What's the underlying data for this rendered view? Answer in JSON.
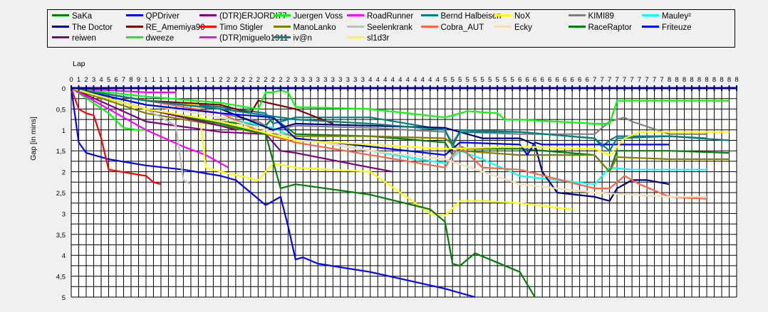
{
  "chart_data": {
    "type": "line",
    "xlabel": "Lap",
    "ylabel": "Gap [in mins]",
    "xlim": [
      0,
      89
    ],
    "ylim": [
      0,
      5
    ],
    "y_inverted": true,
    "x_axis_position": "top",
    "grid": true,
    "legend_position": "top",
    "x_tick_labels": [
      "0",
      "1",
      "2",
      "3",
      "4",
      "5",
      "6",
      "7",
      "8",
      "9",
      "1",
      "1",
      "1",
      "1",
      "1",
      "1",
      "1",
      "1",
      "1",
      "1",
      "2",
      "2",
      "2",
      "2",
      "2",
      "2",
      "2",
      "2",
      "2",
      "2",
      "3",
      "3",
      "3",
      "3",
      "3",
      "3",
      "3",
      "3",
      "3",
      "3",
      "4",
      "4",
      "4",
      "4",
      "4",
      "4",
      "4",
      "4",
      "4",
      "4",
      "5",
      "5",
      "5",
      "5",
      "5",
      "5",
      "5",
      "5",
      "5",
      "5",
      "6",
      "6",
      "6",
      "6",
      "6",
      "6",
      "6",
      "6",
      "6",
      "6",
      "7",
      "7",
      "7",
      "7",
      "7",
      "7",
      "7",
      "7",
      "7",
      "7",
      "8",
      "8",
      "8",
      "8",
      "8",
      "8",
      "8",
      "8",
      "8",
      "8"
    ],
    "y_tick_labels": [
      "0",
      "0,5",
      "1",
      "1,5",
      "2",
      "2,5",
      "3",
      "3,5",
      "4",
      "4,5",
      "5"
    ],
    "y_ticks": [
      0,
      0.5,
      1,
      1.5,
      2,
      2.5,
      3,
      3.5,
      4,
      4.5,
      5
    ],
    "series": [
      {
        "name": "SaKa",
        "color": "#008000",
        "x": [
          0,
          10,
          20,
          26,
          27,
          30,
          40,
          50,
          51,
          52,
          53,
          60,
          70,
          72,
          73,
          80,
          88
        ],
        "y": [
          0,
          0.5,
          0.8,
          0.9,
          0.7,
          1.1,
          1.15,
          1.3,
          1.6,
          1.4,
          1.45,
          1.45,
          1.6,
          2.0,
          1.5,
          1.5,
          1.55
        ]
      },
      {
        "name": "QPDriver",
        "color": "#0000ff",
        "x": [
          0,
          1,
          2,
          5,
          10,
          15,
          20,
          22,
          26,
          28,
          29,
          30,
          31,
          33,
          40,
          50,
          54
        ],
        "y": [
          0,
          1.3,
          1.55,
          1.7,
          1.85,
          1.95,
          2.1,
          2.2,
          2.8,
          2.6,
          3.3,
          4.1,
          4.05,
          4.2,
          4.4,
          4.8,
          5.0
        ]
      },
      {
        "name": "(DTR)ERJORDI77",
        "color": "#800080",
        "x": [
          0,
          10,
          20,
          26,
          28,
          30,
          40,
          43
        ],
        "y": [
          0,
          0.8,
          1.05,
          1.1,
          1.5,
          1.55,
          1.9,
          2.0
        ]
      },
      {
        "name": "Juergen Voss",
        "color": "#00ff00",
        "x": [
          0,
          5,
          7,
          9,
          10
        ],
        "y": [
          0,
          0.6,
          0.95,
          1.0,
          1.0
        ]
      },
      {
        "name": "RoadRunner",
        "color": "#ff00ff",
        "x": [
          0,
          10,
          15,
          18,
          20,
          21
        ],
        "y": [
          0,
          1.0,
          1.4,
          1.6,
          1.8,
          1.9
        ]
      },
      {
        "name": "Bernd Halbeisen",
        "color": "#008080",
        "x": [
          0,
          10,
          20,
          26,
          27,
          30,
          40,
          50,
          51,
          52,
          60,
          70,
          71,
          72,
          73,
          80,
          85
        ],
        "y": [
          0,
          0.3,
          0.45,
          0.6,
          0.85,
          0.7,
          0.7,
          1.0,
          1.4,
          1.0,
          1.05,
          1.2,
          1.4,
          1.25,
          1.15,
          1.15,
          1.2
        ]
      },
      {
        "name": "NoX",
        "color": "#ffff00",
        "x": [
          0,
          10,
          17,
          18,
          20,
          25,
          27,
          30,
          40,
          48,
          50,
          52,
          55,
          60,
          67
        ],
        "y": [
          0,
          0.3,
          0.4,
          1.9,
          2.0,
          2.2,
          1.8,
          1.9,
          2.0,
          3.0,
          3.05,
          2.7,
          2.7,
          2.75,
          2.9
        ]
      },
      {
        "name": "KIMI89",
        "color": "#808080",
        "x": [
          0,
          10,
          20,
          25,
          27,
          30,
          40,
          50,
          51,
          52,
          60,
          70,
          72,
          74,
          75,
          80,
          85
        ],
        "y": [
          0,
          0.4,
          0.6,
          0.8,
          1.0,
          0.9,
          0.95,
          1.05,
          1.3,
          1.05,
          1.1,
          1.1,
          0.8,
          0.7,
          0.8,
          1.1,
          1.1
        ]
      },
      {
        "name": "Mauley²",
        "color": "#00ffff",
        "x": [
          0,
          10,
          20,
          27,
          30,
          40,
          50,
          52,
          55,
          60,
          70,
          72,
          75,
          80,
          85
        ],
        "y": [
          0,
          0.4,
          0.7,
          0.95,
          1.2,
          1.5,
          1.8,
          1.5,
          1.7,
          2.1,
          2.3,
          1.9,
          1.95,
          1.95,
          1.95
        ]
      },
      {
        "name": "The Doctor",
        "color": "#000080",
        "x": [
          0,
          10,
          20,
          27,
          30,
          40,
          50,
          55,
          60,
          62,
          63,
          65,
          70,
          72,
          73,
          75,
          77,
          80
        ],
        "y": [
          0,
          0.3,
          0.5,
          1.0,
          0.85,
          0.9,
          0.95,
          1.2,
          1.2,
          1.35,
          2.0,
          2.5,
          2.6,
          2.7,
          2.4,
          2.2,
          2.2,
          2.3
        ]
      },
      {
        "name": "RE_Amemiya90",
        "color": "#800000",
        "x": [
          0,
          10,
          20,
          24,
          25,
          30,
          35
        ],
        "y": [
          0,
          0.3,
          0.4,
          0.6,
          0.3,
          0.5,
          0.85
        ]
      },
      {
        "name": "Timo Stigler",
        "color": "#ff0000",
        "x": [
          0,
          1,
          2,
          3,
          4,
          5,
          10,
          11,
          12
        ],
        "y": [
          0,
          0.5,
          0.6,
          0.65,
          1.2,
          1.95,
          2.1,
          2.25,
          2.3
        ]
      },
      {
        "name": "ManoLanko",
        "color": "#808000",
        "x": [
          0,
          10,
          20,
          26,
          28,
          30,
          40,
          50,
          52,
          60,
          70,
          72,
          73,
          80,
          88
        ],
        "y": [
          0,
          0.6,
          0.9,
          1.1,
          1.1,
          1.15,
          1.15,
          1.2,
          1.5,
          1.6,
          1.6,
          2.0,
          1.65,
          1.7,
          1.7
        ]
      },
      {
        "name": "Seelenkrank",
        "color": "#c0c0c0",
        "x": [
          0,
          10,
          14,
          15,
          16
        ],
        "y": [
          0,
          0.5,
          0.9,
          2.2,
          2.3
        ]
      },
      {
        "name": "Cobra_AUT",
        "color": "#ff6347",
        "x": [
          0,
          10,
          20,
          26,
          30,
          40,
          50,
          51,
          52,
          55,
          60,
          70,
          72,
          74,
          76,
          80,
          85
        ],
        "y": [
          0,
          0.3,
          0.6,
          1.1,
          1.3,
          1.6,
          1.9,
          1.6,
          1.4,
          1.9,
          1.95,
          2.4,
          2.4,
          2.1,
          2.3,
          2.6,
          2.65
        ]
      },
      {
        "name": "Ecky",
        "color": "#f5deb3",
        "x": [
          0,
          10,
          20,
          30,
          40,
          50,
          55,
          60,
          65,
          70,
          80,
          85
        ],
        "y": [
          0,
          0.4,
          0.7,
          1.2,
          1.5,
          1.7,
          2.0,
          2.3,
          2.4,
          2.5,
          2.6,
          2.6
        ]
      },
      {
        "name": "RaceRaptor",
        "color": "#008000",
        "x": [
          0,
          10,
          20,
          26,
          28,
          30,
          40,
          48,
          50,
          51,
          52,
          54,
          60,
          62
        ],
        "y": [
          0,
          0.5,
          0.85,
          1.1,
          2.4,
          2.3,
          2.55,
          2.9,
          3.2,
          4.2,
          4.25,
          3.95,
          4.4,
          5.0
        ]
      },
      {
        "name": "Friteuze",
        "color": "#0000ff",
        "x": [
          0,
          10,
          20,
          27,
          30,
          40,
          50,
          52,
          60,
          61,
          62,
          63,
          70,
          80
        ],
        "y": [
          0,
          0.4,
          0.6,
          0.7,
          1.2,
          1.4,
          1.6,
          1.3,
          1.35,
          1.6,
          1.3,
          1.35,
          1.35,
          1.35
        ]
      },
      {
        "name": "reiwen",
        "color": "#800080",
        "x": [
          0,
          10,
          20,
          22
        ],
        "y": [
          0,
          0.5,
          0.9,
          1.0
        ]
      },
      {
        "name": "dweeze",
        "color": "#00ff00",
        "x": [
          0,
          10,
          20,
          25,
          26,
          27,
          28,
          29,
          30,
          40,
          50,
          52,
          53,
          57,
          58,
          60,
          70,
          72,
          73,
          80,
          88
        ],
        "y": [
          0,
          0.2,
          0.35,
          0.5,
          0.1,
          0.1,
          0.05,
          0.1,
          0.45,
          0.5,
          0.7,
          0.6,
          0.55,
          0.6,
          0.75,
          0.75,
          0.85,
          0.85,
          0.3,
          0.3,
          0.3
        ]
      },
      {
        "name": "(DTR)miguelo1911",
        "color": "#ff00ff",
        "x": [
          0,
          5,
          10,
          12,
          14
        ],
        "y": [
          0,
          0.05,
          0.1,
          0.1,
          0.1
        ]
      },
      {
        "name": "iv@n",
        "color": "#008080",
        "x": [
          0,
          10,
          20,
          30,
          40,
          50,
          51,
          52,
          60,
          70,
          72,
          73,
          80,
          88
        ],
        "y": [
          0,
          0.3,
          0.5,
          0.75,
          0.85,
          1.0,
          1.35,
          1.05,
          1.05,
          1.2,
          1.5,
          1.2,
          1.15,
          1.25
        ]
      },
      {
        "name": "sl1d3r",
        "color": "#ffff00",
        "x": [
          0,
          10,
          20,
          30,
          40,
          50,
          60,
          70,
          72,
          74,
          76,
          80,
          88
        ],
        "y": [
          0,
          0.5,
          0.8,
          1.25,
          1.35,
          1.45,
          1.4,
          1.45,
          1.6,
          1.2,
          1.05,
          1.05,
          1.05
        ]
      }
    ]
  }
}
